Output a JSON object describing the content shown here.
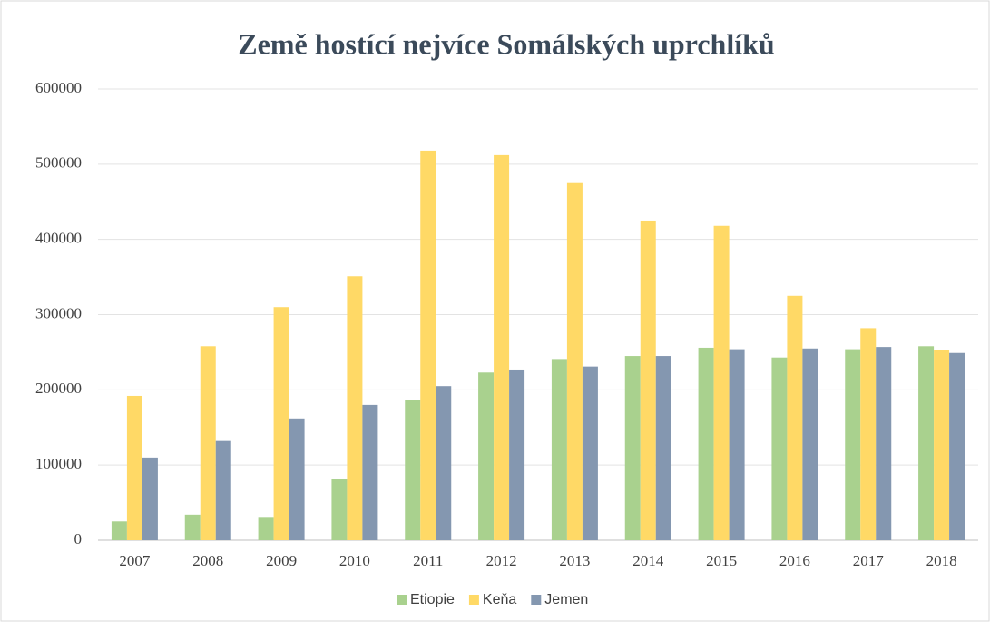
{
  "chart_data": {
    "type": "bar",
    "title": "Země hostící nejvíce Somálských uprchlíků",
    "categories": [
      "2007",
      "2008",
      "2009",
      "2010",
      "2011",
      "2012",
      "2013",
      "2014",
      "2015",
      "2016",
      "2017",
      "2018"
    ],
    "series": [
      {
        "name": "Etiopie",
        "color": "#a9d18e",
        "values": [
          25000,
          34000,
          31000,
          81000,
          186000,
          223000,
          241000,
          245000,
          256000,
          243000,
          254000,
          258000
        ]
      },
      {
        "name": "Keňa",
        "color": "#ffd966",
        "values": [
          192000,
          258000,
          310000,
          351000,
          518000,
          512000,
          476000,
          425000,
          418000,
          325000,
          282000,
          253000
        ]
      },
      {
        "name": "Jemen",
        "color": "#8497b0",
        "values": [
          110000,
          132000,
          162000,
          180000,
          205000,
          227000,
          231000,
          245000,
          254000,
          255000,
          257000,
          249000
        ]
      }
    ],
    "ylim": [
      0,
      600000
    ],
    "yticks": [
      0,
      100000,
      200000,
      300000,
      400000,
      500000,
      600000
    ],
    "grid": true,
    "legend": "bottom"
  }
}
